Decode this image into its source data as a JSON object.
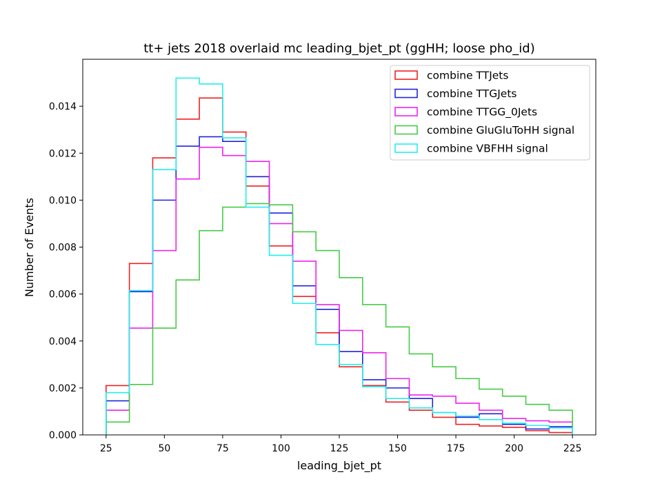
{
  "chart_data": {
    "type": "histogram",
    "title": "tt+ jets 2018 overlaid mc leading_bjet_pt (ggHH; loose pho_id)",
    "xlabel": "leading_bjet_pt",
    "ylabel": "Number of Events",
    "xlim": [
      15,
      235
    ],
    "ylim": [
      0,
      0.016
    ],
    "xticks": [
      25,
      50,
      75,
      100,
      125,
      150,
      175,
      200,
      225
    ],
    "xtick_labels": [
      "25",
      "50",
      "75",
      "100",
      "125",
      "150",
      "175",
      "200",
      "225"
    ],
    "yticks": [
      0,
      0.002,
      0.004,
      0.006,
      0.008,
      0.01,
      0.012,
      0.014
    ],
    "ytick_labels": [
      "0.000",
      "0.002",
      "0.004",
      "0.006",
      "0.008",
      "0.010",
      "0.012",
      "0.014"
    ],
    "bin_edges": [
      25,
      35,
      45,
      55,
      65,
      75,
      85,
      95,
      105,
      115,
      125,
      135,
      145,
      155,
      165,
      175,
      185,
      195,
      205,
      215,
      225
    ],
    "legend_position": "top-right",
    "series": [
      {
        "name": "combine TTJets",
        "color": "#ee2222",
        "values": [
          0.0021,
          0.0073,
          0.0118,
          0.01345,
          0.01435,
          0.0129,
          0.0106,
          0.00805,
          0.0059,
          0.00435,
          0.0029,
          0.0021,
          0.0014,
          0.00105,
          0.00075,
          0.00045,
          0.00038,
          0.00032,
          0.00018,
          0.0001
        ]
      },
      {
        "name": "combine TTGJets",
        "color": "#2222dd",
        "values": [
          0.00145,
          0.0061,
          0.01,
          0.0123,
          0.0127,
          0.0125,
          0.011,
          0.00945,
          0.00635,
          0.00535,
          0.00355,
          0.00235,
          0.002,
          0.00155,
          0.00095,
          0.00075,
          0.0009,
          0.00045,
          0.00025,
          0.00035
        ]
      },
      {
        "name": "combine TTGG_0Jets",
        "color": "#ee22ee",
        "values": [
          0.00105,
          0.00455,
          0.00785,
          0.0109,
          0.01225,
          0.0119,
          0.01165,
          0.009,
          0.0074,
          0.00555,
          0.00445,
          0.0035,
          0.0024,
          0.0017,
          0.00165,
          0.00135,
          0.00105,
          0.0007,
          0.0006,
          0.00055
        ]
      },
      {
        "name": "combine GluGluToHH signal",
        "color": "#44cc44",
        "values": [
          0.00055,
          0.00215,
          0.00455,
          0.0066,
          0.0087,
          0.0097,
          0.00985,
          0.0098,
          0.00865,
          0.00785,
          0.0067,
          0.00555,
          0.0046,
          0.00345,
          0.0029,
          0.0024,
          0.00195,
          0.00165,
          0.0013,
          0.00105
        ]
      },
      {
        "name": "combine VBFHH signal",
        "color": "#22eeee",
        "values": [
          0.0018,
          0.00615,
          0.0113,
          0.0152,
          0.01495,
          0.01265,
          0.0097,
          0.00765,
          0.0056,
          0.00385,
          0.003,
          0.00205,
          0.00155,
          0.00115,
          0.00095,
          0.0008,
          0.00065,
          0.0005,
          0.0004,
          0.0003
        ]
      }
    ]
  }
}
